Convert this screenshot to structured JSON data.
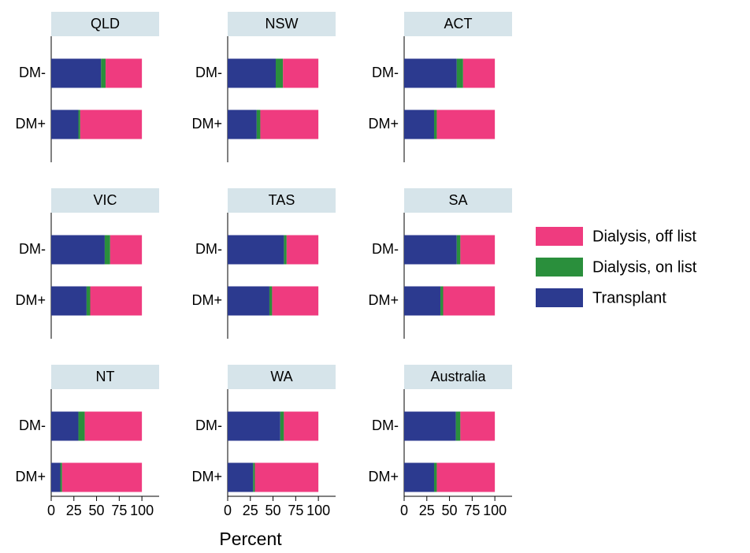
{
  "chart_data": {
    "type": "bar",
    "orientation": "horizontal",
    "stacked": true,
    "xlabel": "Percent",
    "categories": [
      "DM-",
      "DM+"
    ],
    "xlim": [
      0,
      119
    ],
    "xticks": [
      0,
      25,
      50,
      75,
      100
    ],
    "series": [
      {
        "name": "Transplant",
        "color": "#2c3a8f"
      },
      {
        "name": "Dialysis, on list",
        "color": "#2a8f3c"
      },
      {
        "name": "Dialysis, off list",
        "color": "#ef3b7f"
      }
    ],
    "panels": [
      {
        "title": "QLD",
        "values": [
          [
            55,
            5,
            40
          ],
          [
            30,
            2,
            68
          ]
        ]
      },
      {
        "title": "NSW",
        "values": [
          [
            53,
            8,
            39
          ],
          [
            32,
            4,
            64
          ]
        ]
      },
      {
        "title": "ACT",
        "values": [
          [
            58,
            7,
            35
          ],
          [
            33,
            3,
            64
          ]
        ]
      },
      {
        "title": "VIC",
        "values": [
          [
            59,
            6,
            35
          ],
          [
            39,
            4,
            57
          ]
        ]
      },
      {
        "title": "TAS",
        "values": [
          [
            62,
            3,
            35
          ],
          [
            46,
            3,
            51
          ]
        ]
      },
      {
        "title": "SA",
        "values": [
          [
            58,
            4,
            38
          ],
          [
            40,
            3,
            57
          ]
        ]
      },
      {
        "title": "NT",
        "values": [
          [
            30,
            7,
            63
          ],
          [
            10,
            2,
            88
          ]
        ]
      },
      {
        "title": "WA",
        "values": [
          [
            58,
            4,
            38
          ],
          [
            28,
            2,
            70
          ]
        ]
      },
      {
        "title": "Australia",
        "values": [
          [
            57,
            5,
            38
          ],
          [
            33,
            3,
            64
          ]
        ]
      }
    ]
  }
}
